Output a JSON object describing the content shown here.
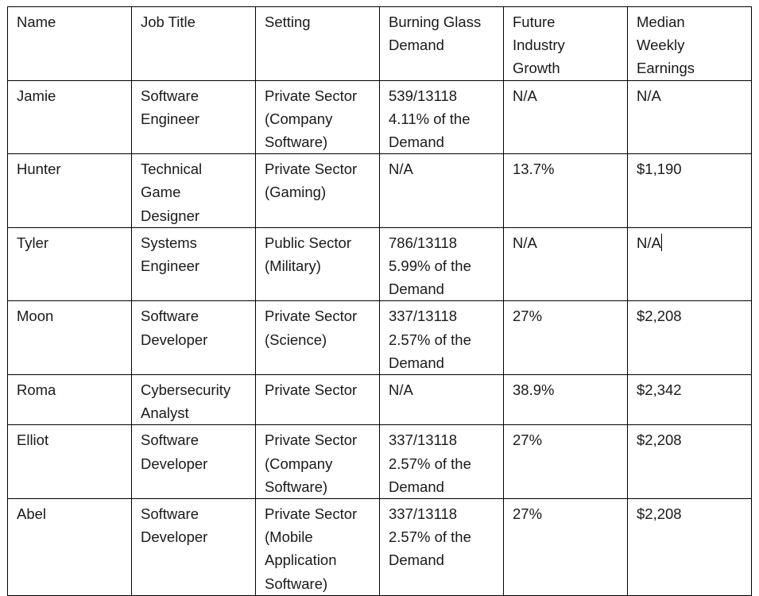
{
  "table": {
    "headers": [
      "Name",
      "Job Title",
      "Setting",
      "Burning Glass\nDemand",
      "Future\nIndustry\nGrowth",
      "Median\nWeekly\nEarnings"
    ],
    "rows": [
      [
        "Jamie",
        "Software\nEngineer",
        "Private Sector\n(Company\nSoftware)",
        "539/13118\n4.11% of the\nDemand",
        "N/A",
        "N/A"
      ],
      [
        "Hunter",
        "Technical\nGame\nDesigner",
        "Private Sector\n(Gaming)",
        "N/A",
        "13.7%",
        "$1,190"
      ],
      [
        "Tyler",
        "Systems\nEngineer",
        "Public Sector\n(Military)",
        "786/13118\n5.99% of the\nDemand",
        "N/A",
        "N/A"
      ],
      [
        "Moon",
        "Software\nDeveloper",
        "Private Sector\n(Science)",
        "337/13118\n2.57% of the\nDemand",
        "27%",
        "$2,208"
      ],
      [
        "Roma",
        "Cybersecurity\nAnalyst",
        "Private Sector",
        "N/A",
        "38.9%",
        "$2,342"
      ],
      [
        "Elliot",
        "Software\nDeveloper",
        "Private Sector\n(Company\nSoftware)",
        "337/13118\n2.57% of the\nDemand",
        "27%",
        "$2,208"
      ],
      [
        "Abel",
        "Software\nDeveloper",
        "Private Sector\n(Mobile\nApplication\nSoftware)",
        "337/13118\n2.57% of the\nDemand",
        "27%",
        "$2,208"
      ]
    ]
  }
}
